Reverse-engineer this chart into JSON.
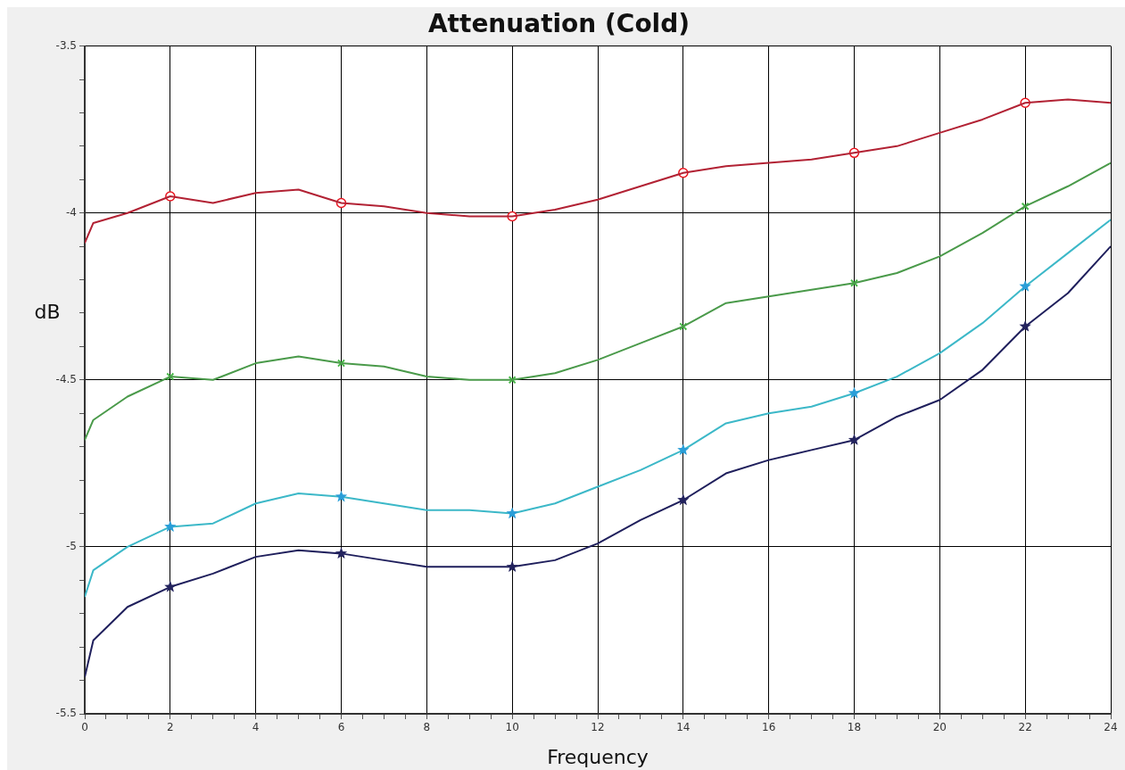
{
  "chart_data": {
    "type": "line",
    "title": "Attenuation (Cold)",
    "xlabel": "Frequency",
    "ylabel": "dB",
    "xlim": [
      0,
      24
    ],
    "ylim": [
      -5.5,
      -3.5
    ],
    "xticks": [
      0,
      {
        "value": 0.5,
        "label": null
      },
      {
        "value": 1,
        "label": null
      },
      {
        "value": 1.5,
        "label": null
      },
      2,
      {
        "value": 2.5,
        "label": null
      },
      {
        "value": 3,
        "label": null
      },
      {
        "value": 3.5,
        "label": null
      },
      4,
      {
        "value": 4.5,
        "label": null
      },
      {
        "value": 5,
        "label": null
      },
      {
        "value": 5.5,
        "label": null
      },
      6,
      {
        "value": 6.5,
        "label": null
      },
      {
        "value": 7,
        "label": null
      },
      {
        "value": 7.5,
        "label": null
      },
      8,
      {
        "value": 8.5,
        "label": null
      },
      {
        "value": 9,
        "label": null
      },
      {
        "value": 9.5,
        "label": null
      },
      10,
      {
        "value": 10.5,
        "label": null
      },
      {
        "value": 11,
        "label": null
      },
      {
        "value": 11.5,
        "label": null
      },
      12,
      {
        "value": 12.5,
        "label": null
      },
      {
        "value": 13,
        "label": null
      },
      {
        "value": 13.5,
        "label": null
      },
      14,
      {
        "value": 14.5,
        "label": null
      },
      {
        "value": 15,
        "label": null
      },
      {
        "value": 15.5,
        "label": null
      },
      16,
      {
        "value": 16.5,
        "label": null
      },
      {
        "value": 17,
        "label": null
      },
      {
        "value": 17.5,
        "label": null
      },
      18,
      {
        "value": 18.5,
        "label": null
      },
      {
        "value": 19,
        "label": null
      },
      {
        "value": 19.5,
        "label": null
      },
      20,
      {
        "value": 20.5,
        "label": null
      },
      {
        "value": 21,
        "label": null
      },
      {
        "value": 21.5,
        "label": null
      },
      22,
      {
        "value": 22.5,
        "label": null
      },
      {
        "value": 23,
        "label": null
      },
      {
        "value": 23.5,
        "label": null
      },
      24
    ],
    "yticks": [
      -5.5,
      {
        "value": -5.4,
        "label": null
      },
      {
        "value": -5.3,
        "label": null
      },
      {
        "value": -5.2,
        "label": null
      },
      {
        "value": -5.1,
        "label": null
      },
      -5,
      {
        "value": -4.9,
        "label": null
      },
      {
        "value": -4.8,
        "label": null
      },
      {
        "value": -4.7,
        "label": null
      },
      {
        "value": -4.6,
        "label": null
      },
      -4.5,
      {
        "value": -4.4,
        "label": null
      },
      {
        "value": -4.3,
        "label": null
      },
      {
        "value": -4.2,
        "label": null
      },
      {
        "value": -4.1,
        "label": null
      },
      -4,
      {
        "value": -3.9,
        "label": null
      },
      {
        "value": -3.8,
        "label": null
      },
      {
        "value": -3.7,
        "label": null
      },
      {
        "value": -3.6,
        "label": null
      },
      -3.5
    ],
    "grid": true,
    "legend": false,
    "series": [
      {
        "type": "line",
        "marker": "none",
        "color": "#b22234",
        "x": [
          0,
          0.2,
          1,
          2,
          3,
          4,
          5,
          6,
          7,
          8,
          9,
          10,
          11,
          12,
          13,
          14,
          15,
          16,
          17,
          18,
          19,
          20,
          21,
          22,
          23,
          24
        ],
        "values": [
          -4.09,
          -4.03,
          -4.0,
          -3.95,
          -3.97,
          -3.94,
          -3.93,
          -3.97,
          -3.98,
          -4.0,
          -4.01,
          -4.01,
          -3.99,
          -3.96,
          -3.92,
          -3.88,
          -3.86,
          -3.85,
          -3.84,
          -3.82,
          -3.8,
          -3.76,
          -3.72,
          -3.67,
          -3.66,
          -3.67
        ]
      },
      {
        "type": "line",
        "marker": "none",
        "color": "#4a9a4a",
        "x": [
          0,
          0.2,
          1,
          2,
          3,
          4,
          5,
          6,
          7,
          8,
          9,
          10,
          11,
          12,
          13,
          14,
          15,
          16,
          17,
          18,
          19,
          20,
          21,
          22,
          23,
          24
        ],
        "values": [
          -4.68,
          -4.62,
          -4.55,
          -4.49,
          -4.5,
          -4.45,
          -4.43,
          -4.45,
          -4.46,
          -4.49,
          -4.5,
          -4.5,
          -4.48,
          -4.44,
          -4.39,
          -4.34,
          -4.27,
          -4.25,
          -4.23,
          -4.21,
          -4.18,
          -4.13,
          -4.06,
          -3.98,
          -3.92,
          -3.85
        ]
      },
      {
        "type": "line",
        "marker": "none",
        "color": "#3cb8c8",
        "x": [
          0,
          0.2,
          1,
          2,
          3,
          4,
          5,
          6,
          7,
          8,
          9,
          10,
          11,
          12,
          13,
          14,
          15,
          16,
          17,
          18,
          19,
          20,
          21,
          22,
          23,
          24
        ],
        "values": [
          -5.15,
          -5.07,
          -5.0,
          -4.94,
          -4.93,
          -4.87,
          -4.84,
          -4.85,
          -4.87,
          -4.89,
          -4.89,
          -4.9,
          -4.87,
          -4.82,
          -4.77,
          -4.71,
          -4.63,
          -4.6,
          -4.58,
          -4.54,
          -4.49,
          -4.42,
          -4.33,
          -4.22,
          -4.12,
          -4.02
        ]
      },
      {
        "type": "line",
        "marker": "none",
        "color": "#1f1f5c",
        "x": [
          0,
          0.2,
          1,
          2,
          3,
          4,
          5,
          6,
          7,
          8,
          9,
          10,
          11,
          12,
          13,
          14,
          15,
          16,
          17,
          18,
          19,
          20,
          21,
          22,
          23,
          24
        ],
        "values": [
          -5.39,
          -5.28,
          -5.18,
          -5.12,
          -5.08,
          -5.03,
          -5.01,
          -5.02,
          -5.04,
          -5.06,
          -5.06,
          -5.06,
          -5.04,
          -4.99,
          -4.92,
          -4.86,
          -4.78,
          -4.74,
          -4.71,
          -4.68,
          -4.61,
          -4.56,
          -4.47,
          -4.34,
          -4.24,
          -4.1
        ]
      },
      {
        "type": "scatter",
        "marker": "circle",
        "color": "#e8141e",
        "x": [
          2,
          6,
          10,
          14,
          18,
          22
        ],
        "values": [
          -3.95,
          -3.97,
          -4.01,
          -3.88,
          -3.82,
          -3.67
        ]
      },
      {
        "type": "scatter",
        "marker": "cross",
        "color": "#48b848",
        "x": [
          2,
          6,
          10,
          14,
          18,
          22
        ],
        "values": [
          -4.49,
          -4.45,
          -4.5,
          -4.34,
          -4.21,
          -3.98
        ]
      },
      {
        "type": "scatter",
        "marker": "star",
        "color": "#2a9ed8",
        "x": [
          2,
          6,
          10,
          14,
          18,
          22
        ],
        "values": [
          -4.94,
          -4.85,
          -4.9,
          -4.71,
          -4.54,
          -4.22
        ]
      },
      {
        "type": "scatter",
        "marker": "star",
        "color": "#23235e",
        "x": [
          2,
          6,
          10,
          14,
          18,
          22
        ],
        "values": [
          -5.12,
          -5.02,
          -5.06,
          -4.86,
          -4.68,
          -4.34
        ]
      }
    ]
  }
}
